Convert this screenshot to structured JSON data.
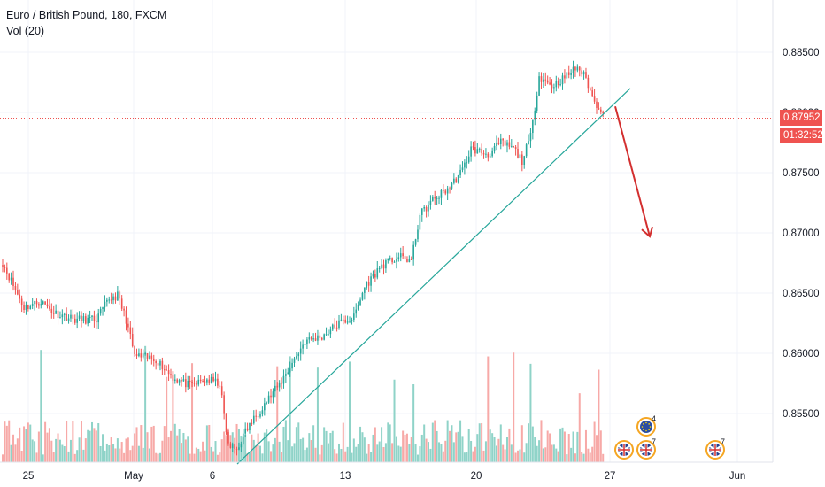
{
  "chart_data": {
    "type": "candlestick",
    "title": "Euro / British Pound, 180, FXCM",
    "indicator": "Vol (20)",
    "y_ticks": [
      0.885,
      0.88,
      0.875,
      0.87,
      0.865,
      0.86,
      0.855
    ],
    "y_tick_labels": [
      "0.88500",
      "0.88000",
      "0.87500",
      "0.87000",
      "0.86500",
      "0.86000",
      "0.85500"
    ],
    "ylim": [
      0.8513,
      0.8895
    ],
    "x_ticks": [
      "25",
      "May",
      "6",
      "13",
      "20",
      "27",
      "Jun"
    ],
    "current_price": {
      "value": 0.87952,
      "label": "0.87952",
      "countdown": "01:32:52",
      "color": "#ef5350"
    },
    "colors": {
      "up": "#26a69a",
      "down": "#ef5350",
      "vol_up": "#8fd3c8",
      "vol_down": "#f7a9a7",
      "trendline": "#26a69a",
      "arrow": "#d32f2f",
      "grid": "#f0f3fa"
    },
    "anchors": [
      [
        0,
        0.8675
      ],
      [
        10,
        0.8638
      ],
      [
        18,
        0.8643
      ],
      [
        24,
        0.8634
      ],
      [
        34,
        0.8628
      ],
      [
        44,
        0.8628
      ],
      [
        50,
        0.8645
      ],
      [
        54,
        0.8648
      ],
      [
        58,
        0.8628
      ],
      [
        62,
        0.8598
      ],
      [
        72,
        0.8595
      ],
      [
        80,
        0.858
      ],
      [
        88,
        0.8573
      ],
      [
        96,
        0.8578
      ],
      [
        102,
        0.8575
      ],
      [
        106,
        0.8523
      ],
      [
        110,
        0.852
      ],
      [
        114,
        0.8535
      ],
      [
        122,
        0.8556
      ],
      [
        130,
        0.8574
      ],
      [
        136,
        0.8592
      ],
      [
        142,
        0.861
      ],
      [
        150,
        0.8614
      ],
      [
        158,
        0.8625
      ],
      [
        165,
        0.863
      ],
      [
        170,
        0.8655
      ],
      [
        178,
        0.8673
      ],
      [
        186,
        0.868
      ],
      [
        192,
        0.8677
      ],
      [
        196,
        0.8715
      ],
      [
        202,
        0.8727
      ],
      [
        210,
        0.8738
      ],
      [
        216,
        0.8752
      ],
      [
        220,
        0.877
      ],
      [
        228,
        0.8765
      ],
      [
        234,
        0.8775
      ],
      [
        240,
        0.877
      ],
      [
        244,
        0.876
      ],
      [
        248,
        0.878
      ],
      [
        252,
        0.883
      ],
      [
        258,
        0.8822
      ],
      [
        264,
        0.8829
      ],
      [
        270,
        0.8838
      ],
      [
        274,
        0.8828
      ],
      [
        278,
        0.8808
      ],
      [
        282,
        0.8802
      ]
    ],
    "candle_count": 283,
    "trendline": {
      "from": {
        "date": "May 7",
        "price": 0.8508
      },
      "to": {
        "date": "May 28",
        "price": 0.882
      }
    },
    "projection_arrow": {
      "from": 0.8805,
      "to": 0.8697
    },
    "events": [
      {
        "kind": "euro",
        "count": "4"
      },
      {
        "kind": "gbp",
        "count": ""
      },
      {
        "kind": "gbp",
        "count": "7"
      },
      {
        "kind": "gbp",
        "count": "7"
      }
    ]
  }
}
